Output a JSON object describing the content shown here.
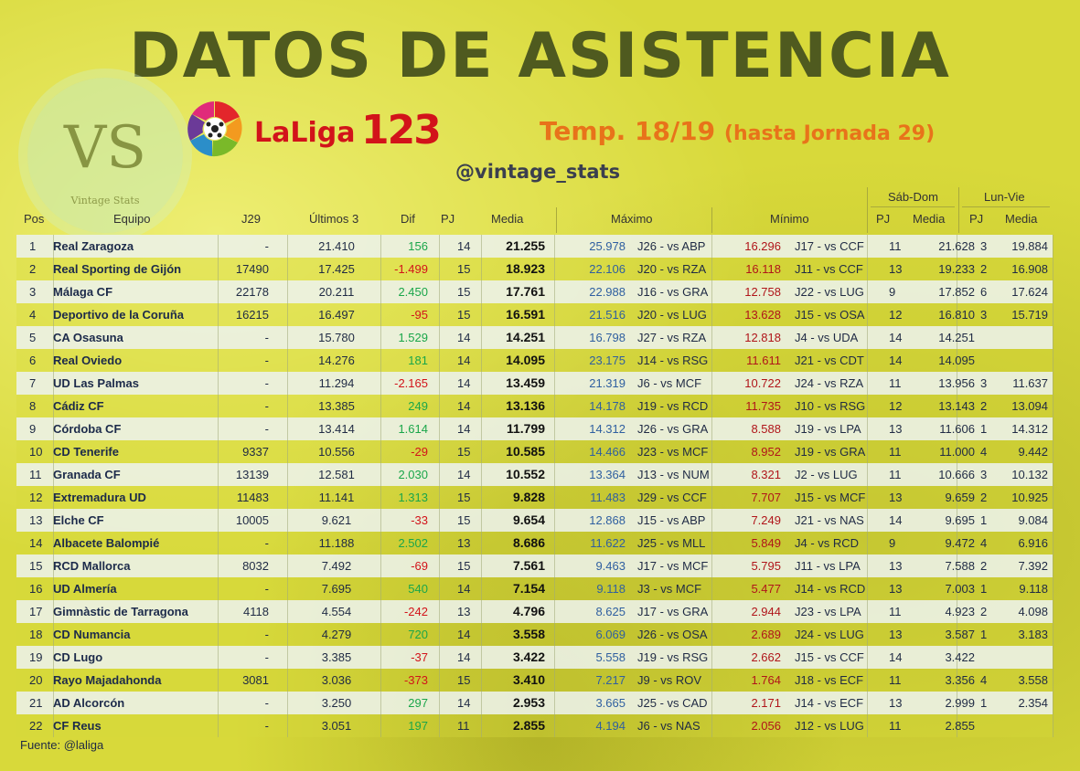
{
  "title": "DATOS DE ASISTENCIA",
  "watermark": {
    "letters": "VS",
    "label": "Vintage Stats"
  },
  "brand": {
    "laliga": "LaLiga",
    "number": "123"
  },
  "season": {
    "main": "Temp. 18/19",
    "note": "(hasta Jornada 29)"
  },
  "handle": "@vintage_stats",
  "source": "Fuente: @laliga",
  "colors": {
    "max": "#2f5fa0",
    "min": "#b0151a",
    "dif_pos": "#1aa64a",
    "dif_neg": "#d2131a"
  },
  "headers": {
    "group_weekend": "Sáb-Dom",
    "group_weekday": "Lun-Vie",
    "pos": "Pos",
    "equipo": "Equipo",
    "j29": "J29",
    "ultimos3": "Últimos 3",
    "dif": "Dif",
    "pj": "PJ",
    "media": "Media",
    "maximo": "Máximo",
    "minimo": "Mínimo",
    "sd_pj": "PJ",
    "sd_media": "Media",
    "lv_pj": "PJ",
    "lv_media": "Media"
  },
  "rows": [
    {
      "pos": "1",
      "team": "Real Zaragoza",
      "j29": "-",
      "u3": "21.410",
      "dif": "156",
      "pj": "14",
      "media": "21.255",
      "max": "25.978",
      "max_game": "J26 - vs ABP",
      "min": "16.296",
      "min_game": "J17 - vs CCF",
      "sd_pj": "11",
      "sd_media": "21.628",
      "lv_pj": "3",
      "lv_media": "19.884"
    },
    {
      "pos": "2",
      "team": "Real Sporting de Gijón",
      "j29": "17490",
      "u3": "17.425",
      "dif": "-1.499",
      "pj": "15",
      "media": "18.923",
      "max": "22.106",
      "max_game": "J20 - vs RZA",
      "min": "16.118",
      "min_game": "J11 - vs CCF",
      "sd_pj": "13",
      "sd_media": "19.233",
      "lv_pj": "2",
      "lv_media": "16.908"
    },
    {
      "pos": "3",
      "team": "Málaga CF",
      "j29": "22178",
      "u3": "20.211",
      "dif": "2.450",
      "pj": "15",
      "media": "17.761",
      "max": "22.988",
      "max_game": "J16 - vs GRA",
      "min": "12.758",
      "min_game": "J22 - vs LUG",
      "sd_pj": "9",
      "sd_media": "17.852",
      "lv_pj": "6",
      "lv_media": "17.624"
    },
    {
      "pos": "4",
      "team": "Deportivo de la Coruña",
      "j29": "16215",
      "u3": "16.497",
      "dif": "-95",
      "pj": "15",
      "media": "16.591",
      "max": "21.516",
      "max_game": "J20 - vs LUG",
      "min": "13.628",
      "min_game": "J15 - vs OSA",
      "sd_pj": "12",
      "sd_media": "16.810",
      "lv_pj": "3",
      "lv_media": "15.719"
    },
    {
      "pos": "5",
      "team": "CA Osasuna",
      "j29": "-",
      "u3": "15.780",
      "dif": "1.529",
      "pj": "14",
      "media": "14.251",
      "max": "16.798",
      "max_game": "J27 - vs RZA",
      "min": "12.818",
      "min_game": "J4 - vs UDA",
      "sd_pj": "14",
      "sd_media": "14.251",
      "lv_pj": "",
      "lv_media": ""
    },
    {
      "pos": "6",
      "team": "Real Oviedo",
      "j29": "-",
      "u3": "14.276",
      "dif": "181",
      "pj": "14",
      "media": "14.095",
      "max": "23.175",
      "max_game": "J14 - vs RSG",
      "min": "11.611",
      "min_game": "J21 - vs CDT",
      "sd_pj": "14",
      "sd_media": "14.095",
      "lv_pj": "",
      "lv_media": ""
    },
    {
      "pos": "7",
      "team": "UD Las Palmas",
      "j29": "-",
      "u3": "11.294",
      "dif": "-2.165",
      "pj": "14",
      "media": "13.459",
      "max": "21.319",
      "max_game": "J6 - vs MCF",
      "min": "10.722",
      "min_game": "J24 - vs RZA",
      "sd_pj": "11",
      "sd_media": "13.956",
      "lv_pj": "3",
      "lv_media": "11.637"
    },
    {
      "pos": "8",
      "team": "Cádiz CF",
      "j29": "-",
      "u3": "13.385",
      "dif": "249",
      "pj": "14",
      "media": "13.136",
      "max": "14.178",
      "max_game": "J19 - vs RCD",
      "min": "11.735",
      "min_game": "J10 - vs RSG",
      "sd_pj": "12",
      "sd_media": "13.143",
      "lv_pj": "2",
      "lv_media": "13.094"
    },
    {
      "pos": "9",
      "team": "Córdoba CF",
      "j29": "-",
      "u3": "13.414",
      "dif": "1.614",
      "pj": "14",
      "media": "11.799",
      "max": "14.312",
      "max_game": "J26 - vs GRA",
      "min": "8.588",
      "min_game": "J19 - vs LPA",
      "sd_pj": "13",
      "sd_media": "11.606",
      "lv_pj": "1",
      "lv_media": "14.312"
    },
    {
      "pos": "10",
      "team": "CD Tenerife",
      "j29": "9337",
      "u3": "10.556",
      "dif": "-29",
      "pj": "15",
      "media": "10.585",
      "max": "14.466",
      "max_game": "J23 - vs MCF",
      "min": "8.952",
      "min_game": "J19 - vs GRA",
      "sd_pj": "11",
      "sd_media": "11.000",
      "lv_pj": "4",
      "lv_media": "9.442"
    },
    {
      "pos": "11",
      "team": "Granada CF",
      "j29": "13139",
      "u3": "12.581",
      "dif": "2.030",
      "pj": "14",
      "media": "10.552",
      "max": "13.364",
      "max_game": "J13 - vs NUM",
      "min": "8.321",
      "min_game": "J2 - vs LUG",
      "sd_pj": "11",
      "sd_media": "10.666",
      "lv_pj": "3",
      "lv_media": "10.132"
    },
    {
      "pos": "12",
      "team": "Extremadura UD",
      "j29": "11483",
      "u3": "11.141",
      "dif": "1.313",
      "pj": "15",
      "media": "9.828",
      "max": "11.483",
      "max_game": "J29 - vs CCF",
      "min": "7.707",
      "min_game": "J15 - vs MCF",
      "sd_pj": "13",
      "sd_media": "9.659",
      "lv_pj": "2",
      "lv_media": "10.925"
    },
    {
      "pos": "13",
      "team": "Elche CF",
      "j29": "10005",
      "u3": "9.621",
      "dif": "-33",
      "pj": "15",
      "media": "9.654",
      "max": "12.868",
      "max_game": "J15 - vs ABP",
      "min": "7.249",
      "min_game": "J21 - vs NAS",
      "sd_pj": "14",
      "sd_media": "9.695",
      "lv_pj": "1",
      "lv_media": "9.084"
    },
    {
      "pos": "14",
      "team": "Albacete Balompié",
      "j29": "-",
      "u3": "11.188",
      "dif": "2.502",
      "pj": "13",
      "media": "8.686",
      "max": "11.622",
      "max_game": "J25 - vs MLL",
      "min": "5.849",
      "min_game": "J4 - vs RCD",
      "sd_pj": "9",
      "sd_media": "9.472",
      "lv_pj": "4",
      "lv_media": "6.916"
    },
    {
      "pos": "15",
      "team": "RCD Mallorca",
      "j29": "8032",
      "u3": "7.492",
      "dif": "-69",
      "pj": "15",
      "media": "7.561",
      "max": "9.463",
      "max_game": "J17 - vs MCF",
      "min": "5.795",
      "min_game": "J11 - vs LPA",
      "sd_pj": "13",
      "sd_media": "7.588",
      "lv_pj": "2",
      "lv_media": "7.392"
    },
    {
      "pos": "16",
      "team": "UD Almería",
      "j29": "-",
      "u3": "7.695",
      "dif": "540",
      "pj": "14",
      "media": "7.154",
      "max": "9.118",
      "max_game": "J3 - vs MCF",
      "min": "5.477",
      "min_game": "J14 - vs RCD",
      "sd_pj": "13",
      "sd_media": "7.003",
      "lv_pj": "1",
      "lv_media": "9.118"
    },
    {
      "pos": "17",
      "team": "Gimnàstic de Tarragona",
      "j29": "4118",
      "u3": "4.554",
      "dif": "-242",
      "pj": "13",
      "media": "4.796",
      "max": "8.625",
      "max_game": "J17 - vs GRA",
      "min": "2.944",
      "min_game": "J23 - vs LPA",
      "sd_pj": "11",
      "sd_media": "4.923",
      "lv_pj": "2",
      "lv_media": "4.098"
    },
    {
      "pos": "18",
      "team": "CD Numancia",
      "j29": "-",
      "u3": "4.279",
      "dif": "720",
      "pj": "14",
      "media": "3.558",
      "max": "6.069",
      "max_game": "J26 - vs OSA",
      "min": "2.689",
      "min_game": "J24 - vs LUG",
      "sd_pj": "13",
      "sd_media": "3.587",
      "lv_pj": "1",
      "lv_media": "3.183"
    },
    {
      "pos": "19",
      "team": "CD Lugo",
      "j29": "-",
      "u3": "3.385",
      "dif": "-37",
      "pj": "14",
      "media": "3.422",
      "max": "5.558",
      "max_game": "J19 - vs RSG",
      "min": "2.662",
      "min_game": "J15 - vs CCF",
      "sd_pj": "14",
      "sd_media": "3.422",
      "lv_pj": "",
      "lv_media": ""
    },
    {
      "pos": "20",
      "team": "Rayo Majadahonda",
      "j29": "3081",
      "u3": "3.036",
      "dif": "-373",
      "pj": "15",
      "media": "3.410",
      "max": "7.217",
      "max_game": "J9 - vs ROV",
      "min": "1.764",
      "min_game": "J18 - vs ECF",
      "sd_pj": "11",
      "sd_media": "3.356",
      "lv_pj": "4",
      "lv_media": "3.558"
    },
    {
      "pos": "21",
      "team": "AD Alcorcón",
      "j29": "-",
      "u3": "3.250",
      "dif": "297",
      "pj": "14",
      "media": "2.953",
      "max": "3.665",
      "max_game": "J25 - vs CAD",
      "min": "2.171",
      "min_game": "J14 - vs ECF",
      "sd_pj": "13",
      "sd_media": "2.999",
      "lv_pj": "1",
      "lv_media": "2.354"
    },
    {
      "pos": "22",
      "team": "CF Reus",
      "j29": "-",
      "u3": "3.051",
      "dif": "197",
      "pj": "11",
      "media": "2.855",
      "max": "4.194",
      "max_game": "J6 - vs NAS",
      "min": "2.056",
      "min_game": "J12 - vs LUG",
      "sd_pj": "11",
      "sd_media": "2.855",
      "lv_pj": "",
      "lv_media": ""
    }
  ]
}
